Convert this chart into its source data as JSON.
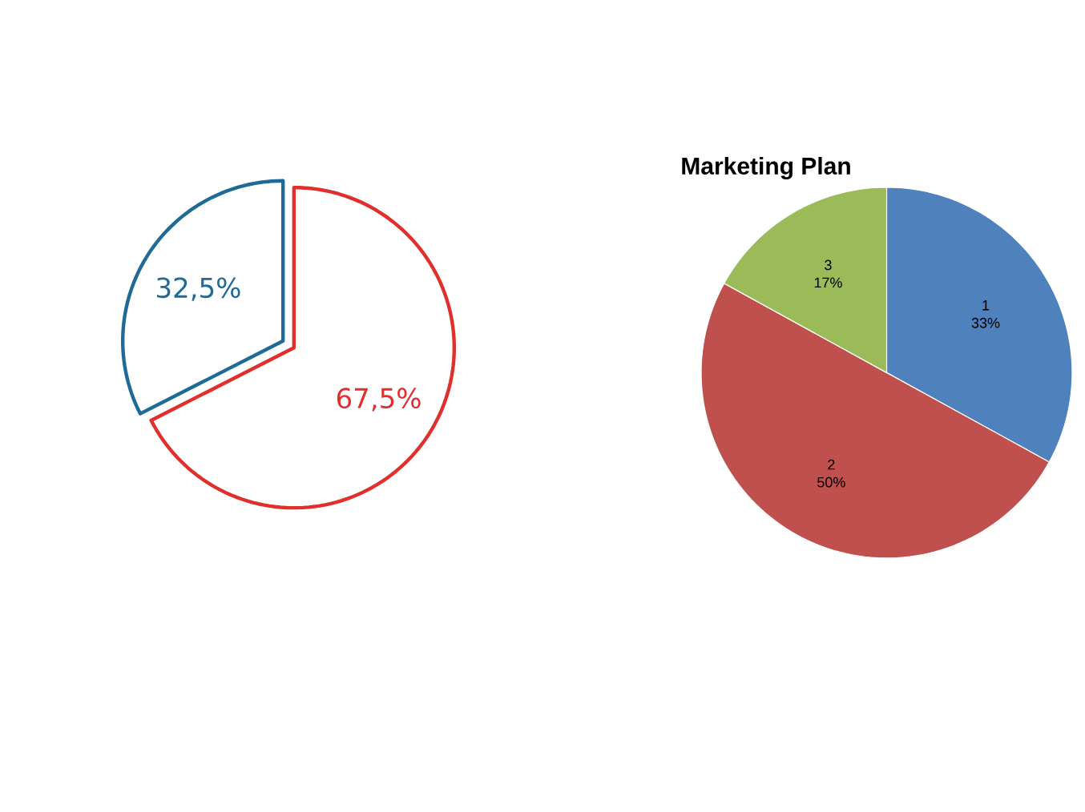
{
  "chart_data": [
    {
      "type": "pie",
      "categories": [
        null,
        null
      ],
      "values": [
        67.5,
        32.5
      ],
      "colors": [
        "#e0302e",
        "#1f6a96"
      ],
      "value_labels": [
        "67,5%",
        "32,5%"
      ]
    },
    {
      "type": "pie",
      "title": "Marketing Plan",
      "categories": [
        "1",
        "2",
        "3"
      ],
      "values": [
        33,
        50,
        17
      ],
      "colors": [
        "#4f81bd",
        "#c0504d",
        "#9bbb59"
      ],
      "value_labels": [
        "33%",
        "50%",
        "17%"
      ]
    }
  ]
}
